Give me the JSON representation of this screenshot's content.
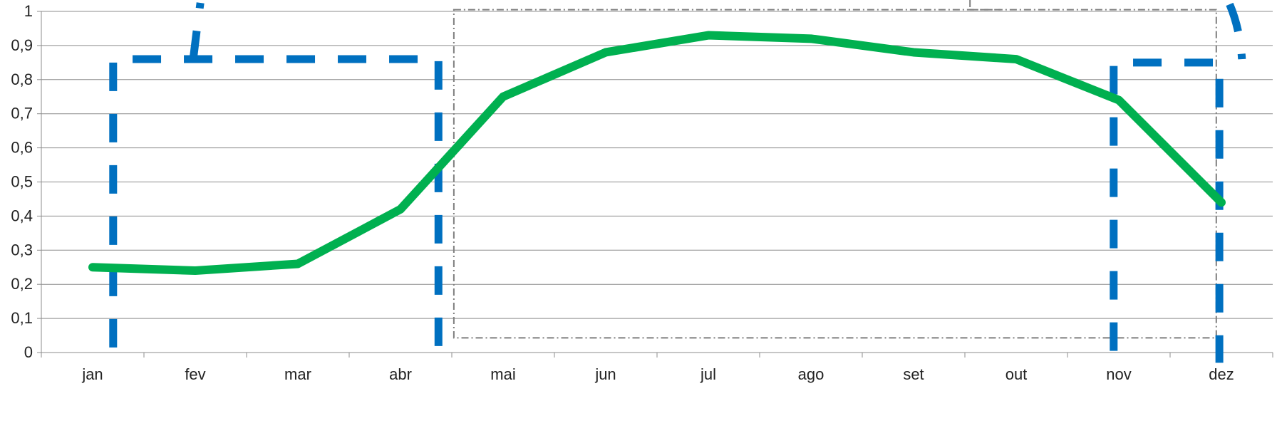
{
  "chart_data": {
    "type": "line",
    "title": "",
    "xlabel": "",
    "ylabel": "",
    "categories": [
      "jan",
      "fev",
      "mar",
      "abr",
      "mai",
      "jun",
      "jul",
      "ago",
      "set",
      "out",
      "nov",
      "dez"
    ],
    "y_ticks": [
      "0",
      "0,1",
      "0,2",
      "0,3",
      "0,4",
      "0,5",
      "0,6",
      "0,7",
      "0,8",
      "0,9",
      "1"
    ],
    "ylim": [
      0,
      1
    ],
    "grid": true,
    "legend": "none",
    "series": [
      {
        "values": [
          0.25,
          0.24,
          0.26,
          0.42,
          0.75,
          0.88,
          0.93,
          0.92,
          0.88,
          0.86,
          0.74,
          0.44
        ],
        "color": "#00b050"
      }
    ],
    "annotations": {
      "dashed_outline_color": "#0070c0",
      "dotted_box_color": "#7f7f7f"
    }
  }
}
